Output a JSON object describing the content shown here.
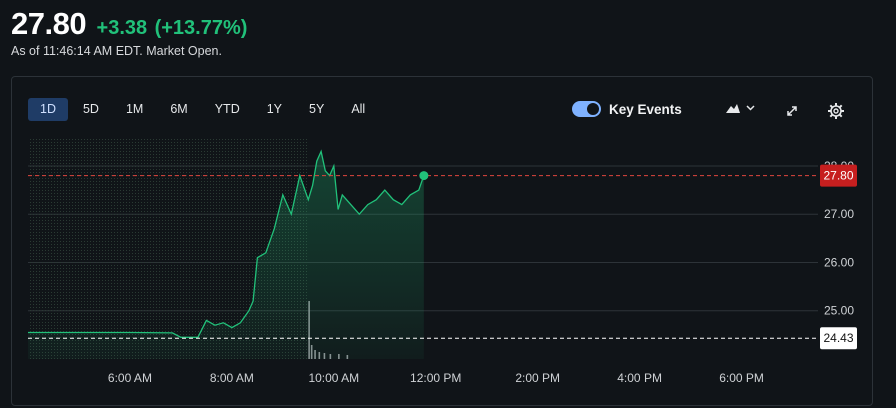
{
  "quote": {
    "price": "27.80",
    "change": "+3.38",
    "change_pct": "(+13.77%)",
    "as_of": "As of 11:46:14 AM EDT. Market Open."
  },
  "toolbar": {
    "ranges": [
      "1D",
      "5D",
      "1M",
      "6M",
      "YTD",
      "1Y",
      "5Y",
      "All"
    ],
    "active_range": "1D",
    "key_events_label": "Key Events",
    "key_events_on": true
  },
  "colors": {
    "up": "#21c17a",
    "current_price_line": "#e0453e",
    "current_price_tag": "#c61f1f",
    "previous_close_line": "#ffffff",
    "active_tab": "#1f3c66"
  },
  "chart_data": {
    "type": "area",
    "x_ticks": [
      "6:00 AM",
      "8:00 AM",
      "10:00 AM",
      "12:00 PM",
      "2:00 PM",
      "4:00 PM",
      "6:00 PM"
    ],
    "y_ticks": [
      "25.00",
      "26.00",
      "27.00",
      "28.00"
    ],
    "ylim": [
      24.0,
      28.6
    ],
    "current_price": 27.8,
    "current_price_label": "27.80",
    "previous_close": 24.43,
    "previous_close_label": "24.43",
    "grid": true,
    "series": [
      {
        "x": [
          "4:00",
          "5:00",
          "6:00",
          "6:50",
          "7:00",
          "7:20",
          "7:30",
          "7:40",
          "7:50",
          "8:00",
          "8:10",
          "8:20",
          "8:25",
          "8:30",
          "8:40",
          "8:50",
          "9:00",
          "9:10",
          "9:20",
          "9:30",
          "9:35",
          "9:40",
          "9:45",
          "9:50",
          "9:55",
          "10:00",
          "10:05",
          "10:10",
          "10:20",
          "10:30",
          "10:40",
          "10:50",
          "11:00",
          "11:10",
          "11:20",
          "11:30",
          "11:40",
          "11:46"
        ],
        "y": [
          24.55,
          24.55,
          24.55,
          24.54,
          24.45,
          24.45,
          24.8,
          24.7,
          24.75,
          24.65,
          24.75,
          25.0,
          25.2,
          26.1,
          26.2,
          26.7,
          27.4,
          27.0,
          27.8,
          27.3,
          27.6,
          28.1,
          28.3,
          27.9,
          27.8,
          28.0,
          27.1,
          27.4,
          27.2,
          27.0,
          27.2,
          27.3,
          27.5,
          27.3,
          27.2,
          27.4,
          27.5,
          27.8
        ]
      }
    ],
    "volume_note": "volume bars at market open"
  }
}
